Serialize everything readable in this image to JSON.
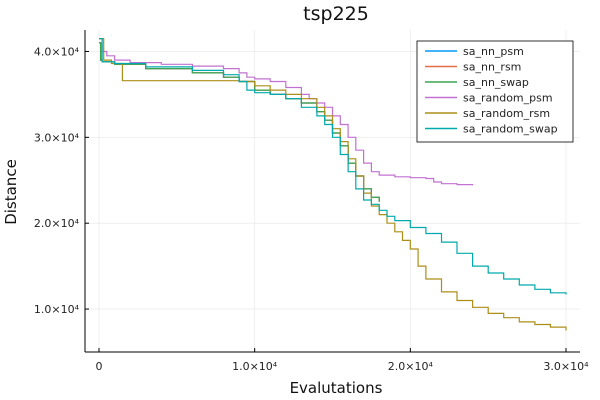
{
  "chart_data": {
    "type": "line",
    "title": "tsp225",
    "xlabel": "Evalutations",
    "ylabel": "Distance",
    "xlim": [
      0,
      30000
    ],
    "ylim": [
      5000,
      42500
    ],
    "xticks": [
      {
        "value": 0,
        "label": "0"
      },
      {
        "value": 10000,
        "label": "1.0×10⁴"
      },
      {
        "value": 20000,
        "label": "2.0×10⁴"
      },
      {
        "value": 30000,
        "label": "3.0×10⁴"
      }
    ],
    "yticks": [
      {
        "value": 10000,
        "label": "1.0×10⁴"
      },
      {
        "value": 20000,
        "label": "2.0×10⁴"
      },
      {
        "value": 30000,
        "label": "3.0×10⁴"
      },
      {
        "value": 40000,
        "label": "4.0×10⁴"
      }
    ],
    "grid": true,
    "legend_position": "top-right",
    "series": [
      {
        "name": "sa_nn_psm",
        "color": "#009AFA",
        "x": [
          0,
          100,
          200,
          1000,
          3000,
          6000,
          8000,
          9000,
          10000,
          11000,
          12000,
          13000,
          14000,
          14500,
          15000,
          15500,
          16000,
          16500,
          17000,
          17500,
          18000
        ],
        "y": [
          41000,
          39000,
          38800,
          38500,
          38000,
          37500,
          37000,
          36500,
          35500,
          35000,
          34500,
          34000,
          33000,
          32000,
          30500,
          29000,
          27000,
          25500,
          24000,
          23000,
          22500
        ]
      },
      {
        "name": "sa_nn_rsm",
        "color": "#E36F47",
        "x": [
          0,
          100,
          200,
          1000,
          3000,
          6000,
          8000,
          9000,
          10000,
          11000,
          12000,
          13000,
          14000,
          14500,
          15000,
          15500,
          16000,
          16500,
          17000,
          17500,
          18000
        ],
        "y": [
          41000,
          39000,
          38800,
          38500,
          38000,
          37500,
          37000,
          36500,
          35500,
          35000,
          34500,
          34000,
          33000,
          32000,
          30500,
          29000,
          27000,
          25500,
          24000,
          23000,
          22500
        ]
      },
      {
        "name": "sa_nn_swap",
        "color": "#3EA44E",
        "x": [
          0,
          100,
          200,
          1000,
          3000,
          6000,
          8000,
          9000,
          10000,
          11000,
          12000,
          13000,
          14000,
          14500,
          15000,
          15500,
          16000,
          16500,
          17000,
          17500,
          18000
        ],
        "y": [
          41000,
          39000,
          38800,
          38500,
          38000,
          37500,
          37000,
          36500,
          35500,
          35000,
          34500,
          34000,
          33000,
          32000,
          30500,
          29000,
          27000,
          25500,
          24000,
          23000,
          22500
        ]
      },
      {
        "name": "sa_random_psm",
        "color": "#C271D2",
        "x": [
          0,
          200,
          500,
          1000,
          2000,
          4000,
          6000,
          8000,
          9000,
          9500,
          10000,
          11000,
          12000,
          13000,
          13500,
          14000,
          14500,
          15000,
          15500,
          16000,
          16500,
          17000,
          17500,
          18000,
          19000,
          20000,
          21000,
          21500,
          22000,
          23000,
          24000
        ],
        "y": [
          41500,
          40000,
          39500,
          39000,
          38700,
          38500,
          38300,
          38000,
          37500,
          37000,
          36800,
          36500,
          35800,
          35000,
          34500,
          34000,
          33500,
          32500,
          31500,
          30000,
          28500,
          27000,
          26000,
          25600,
          25400,
          25300,
          25200,
          24800,
          24600,
          24500,
          24400
        ]
      },
      {
        "name": "sa_random_rsm",
        "color": "#AC8E18",
        "x": [
          0,
          300,
          800,
          1500,
          2500,
          5000,
          8000,
          9000,
          10000,
          11000,
          12000,
          13000,
          14000,
          14500,
          15000,
          15500,
          16000,
          16500,
          17000,
          17500,
          18000,
          18500,
          19000,
          19500,
          20000,
          20500,
          21000,
          22000,
          23000,
          24000,
          25000,
          26000,
          27000,
          28000,
          29000,
          30000
        ],
        "y": [
          41500,
          39000,
          38600,
          36600,
          36600,
          36600,
          36600,
          36500,
          36000,
          35500,
          35000,
          34500,
          33500,
          32500,
          31000,
          29500,
          27500,
          25500,
          23500,
          22000,
          21000,
          20000,
          19000,
          18000,
          17000,
          15000,
          13500,
          12000,
          11000,
          10200,
          9500,
          9000,
          8500,
          8200,
          7900,
          7500
        ]
      },
      {
        "name": "sa_random_swap",
        "color": "#00A9AD",
        "x": [
          0,
          200,
          1000,
          3000,
          6000,
          8000,
          9000,
          9500,
          10000,
          11000,
          12000,
          13000,
          14000,
          14500,
          15000,
          15500,
          16000,
          16500,
          17000,
          17500,
          18000,
          18500,
          19000,
          20000,
          21000,
          22000,
          23000,
          24000,
          25000,
          26000,
          27000,
          28000,
          29000,
          30000
        ],
        "y": [
          41500,
          38800,
          38600,
          38200,
          37800,
          37300,
          36500,
          35500,
          35200,
          35000,
          34500,
          33500,
          32500,
          31500,
          30000,
          28000,
          26000,
          24000,
          22700,
          22200,
          21500,
          20800,
          20300,
          19500,
          18800,
          17800,
          16500,
          15000,
          14200,
          13500,
          12800,
          12300,
          11900,
          11700
        ]
      }
    ]
  }
}
